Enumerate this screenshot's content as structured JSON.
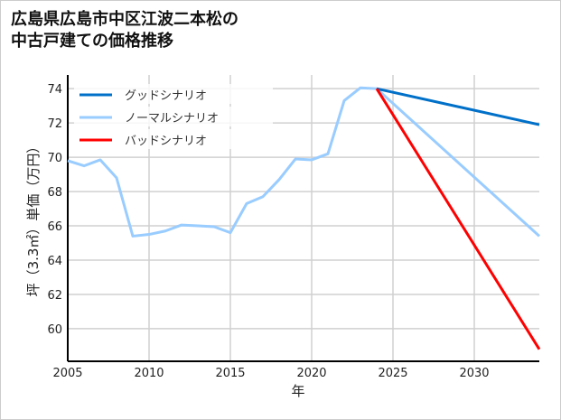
{
  "chart_data": {
    "type": "line",
    "title_lines": [
      "広島県広島市中区江波二本松の",
      "中古戸建ての価格推移"
    ],
    "xlabel": "年",
    "ylabel": "坪（3.3㎡）単価（万円）",
    "xlim": [
      2005,
      2034
    ],
    "ylim": [
      58.1,
      74.8
    ],
    "xticks": [
      2005,
      2010,
      2015,
      2020,
      2025,
      2030
    ],
    "yticks": [
      60,
      62,
      64,
      66,
      68,
      70,
      72,
      74
    ],
    "grid": true,
    "legend_position": "top-left",
    "series": [
      {
        "name": "グッドシナリオ",
        "color": "#0070c8",
        "x": [
          2024,
          2034
        ],
        "y": [
          74.0,
          71.9
        ]
      },
      {
        "name": "ノーマルシナリオ",
        "color": "#99ccff",
        "x": [
          2005,
          2006,
          2007,
          2008,
          2009,
          2010,
          2011,
          2012,
          2013,
          2014,
          2015,
          2016,
          2017,
          2018,
          2019,
          2020,
          2021,
          2022,
          2023,
          2024,
          2034
        ],
        "y": [
          69.8,
          69.5,
          69.85,
          68.8,
          65.4,
          65.5,
          65.7,
          66.05,
          66.0,
          65.95,
          65.6,
          67.3,
          67.7,
          68.7,
          69.9,
          69.85,
          70.2,
          73.3,
          74.05,
          74.0,
          65.4
        ]
      },
      {
        "name": "バッドシナリオ",
        "color": "#ff0000",
        "x": [
          2024,
          2034
        ],
        "y": [
          74.0,
          58.8
        ]
      }
    ]
  }
}
